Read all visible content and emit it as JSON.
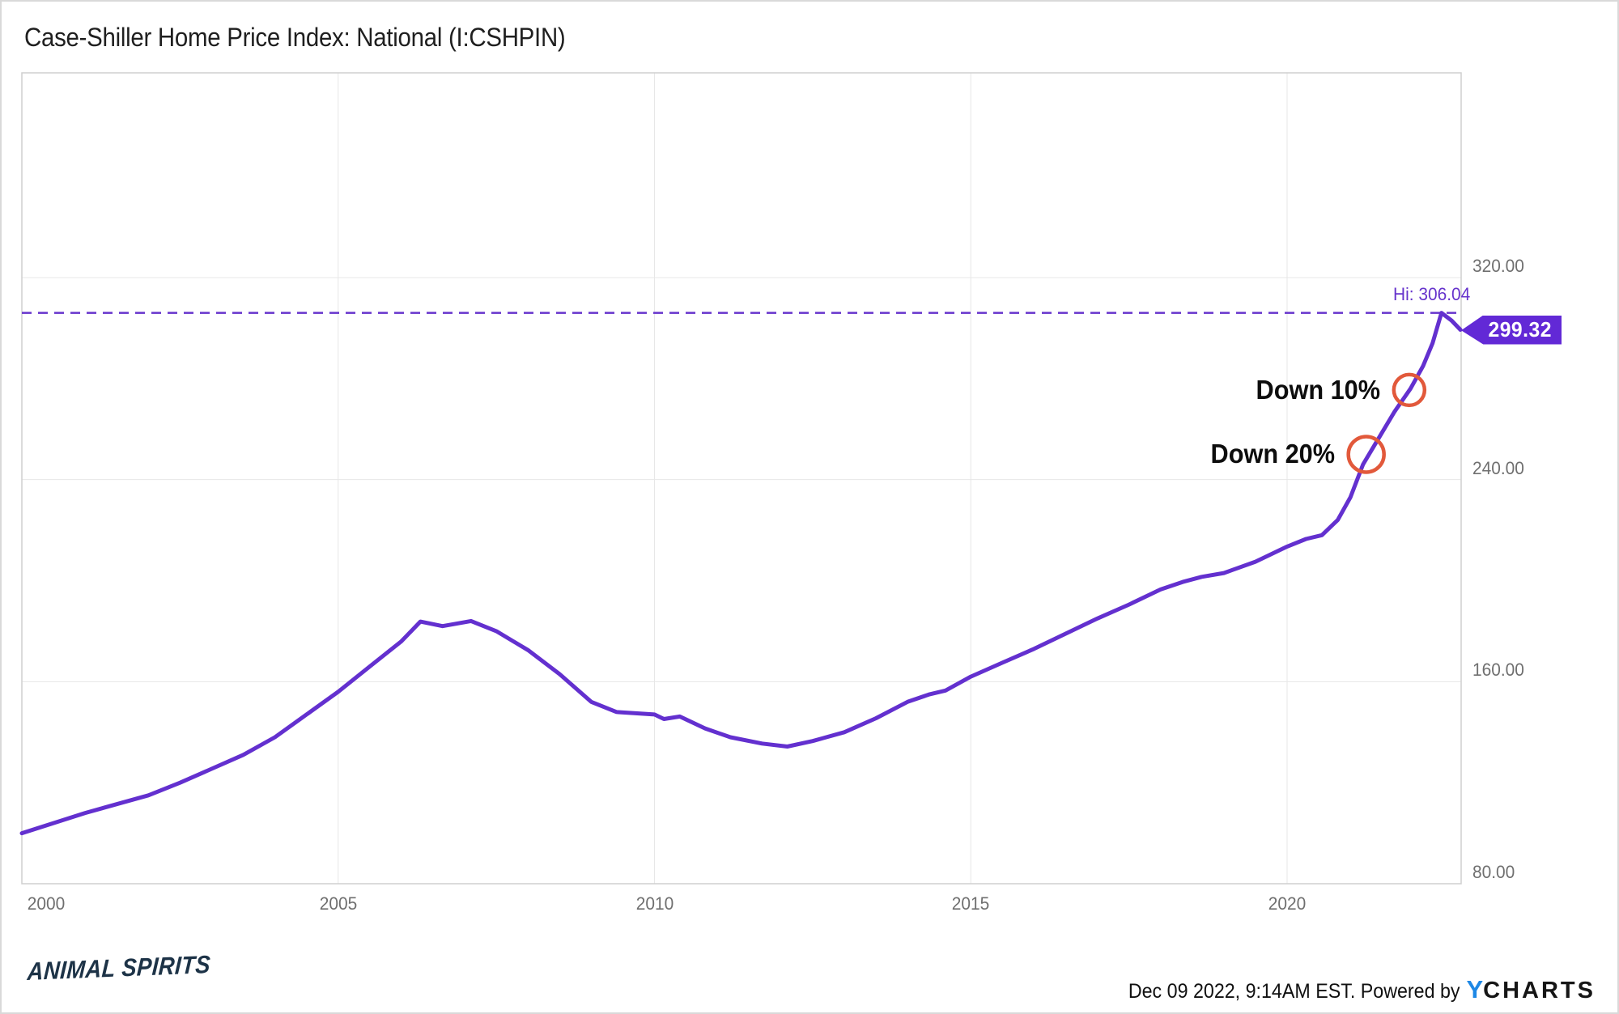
{
  "title": "Case-Shiller Home Price Index: National (I:CSHPIN)",
  "branding": {
    "watermark": "ANIMAL SPIRITS",
    "footer_timestamp": "Dec 09 2022, 9:14AM EST. Powered by",
    "ycharts_y": "Y",
    "ycharts_rest": "CHARTS"
  },
  "colors": {
    "line": "#6330cf",
    "dashed_line": "#6633cc",
    "badge_bg": "#6229d6",
    "annotation_circle": "#e2593b",
    "grid": "#e7e7e7",
    "plot_border": "#cfcfcf",
    "tick_text": "#6f6f6f",
    "title_text": "#1f1f1f",
    "watermark_text": "#1d3347",
    "ycharts_blue": "#1e88e5"
  },
  "chart_data": {
    "type": "line",
    "title": "Case-Shiller Home Price Index: National (I:CSHPIN)",
    "series_name": "I:CSHPIN",
    "xlabel": "",
    "ylabel": "",
    "x_range": [
      2000,
      2022.74
    ],
    "ylim": [
      80,
      401
    ],
    "grid": true,
    "x_ticks": [
      {
        "value": 2000,
        "label": "2000"
      },
      {
        "value": 2005,
        "label": "2005"
      },
      {
        "value": 2010,
        "label": "2010"
      },
      {
        "value": 2015,
        "label": "2015"
      },
      {
        "value": 2020,
        "label": "2020"
      }
    ],
    "y_ticks": [
      {
        "value": 320,
        "label": "320.00"
      },
      {
        "value": 240,
        "label": "240.00"
      },
      {
        "value": 160,
        "label": "160.00"
      },
      {
        "value": 80,
        "label": "80.00"
      }
    ],
    "hi": {
      "label": "Hi: 306.04",
      "value": 306.04
    },
    "last": {
      "label": "299.32",
      "value": 299.32,
      "x": 2022.74
    },
    "annotations": [
      {
        "label": "Down 10%",
        "x": 2021.93,
        "y": 275.5,
        "radius": 19
      },
      {
        "label": "Down 20%",
        "x": 2021.25,
        "y": 250.0,
        "radius": 22
      }
    ],
    "points": [
      [
        2000.0,
        100
      ],
      [
        2000.5,
        104
      ],
      [
        2001.0,
        108
      ],
      [
        2001.5,
        111.5
      ],
      [
        2002.0,
        115
      ],
      [
        2002.5,
        120
      ],
      [
        2003.0,
        125.5
      ],
      [
        2003.5,
        131
      ],
      [
        2004.0,
        138
      ],
      [
        2004.5,
        147
      ],
      [
        2005.0,
        156
      ],
      [
        2005.5,
        166
      ],
      [
        2006.0,
        176
      ],
      [
        2006.3,
        183.8
      ],
      [
        2006.65,
        182
      ],
      [
        2007.1,
        184
      ],
      [
        2007.5,
        180
      ],
      [
        2008.0,
        172.5
      ],
      [
        2008.5,
        163
      ],
      [
        2009.0,
        152
      ],
      [
        2009.4,
        148
      ],
      [
        2010.0,
        147
      ],
      [
        2010.15,
        145.2
      ],
      [
        2010.4,
        146.2
      ],
      [
        2010.8,
        141.5
      ],
      [
        2011.2,
        138
      ],
      [
        2011.7,
        135.5
      ],
      [
        2012.1,
        134.3
      ],
      [
        2012.5,
        136.5
      ],
      [
        2013.0,
        140
      ],
      [
        2013.5,
        145.5
      ],
      [
        2014.0,
        152
      ],
      [
        2014.35,
        155
      ],
      [
        2014.6,
        156.5
      ],
      [
        2015.0,
        162
      ],
      [
        2015.5,
        167.5
      ],
      [
        2016.0,
        173
      ],
      [
        2016.5,
        179
      ],
      [
        2017.0,
        185
      ],
      [
        2017.5,
        190.5
      ],
      [
        2018.0,
        196.5
      ],
      [
        2018.35,
        199.5
      ],
      [
        2018.65,
        201.5
      ],
      [
        2019.0,
        203
      ],
      [
        2019.5,
        207.5
      ],
      [
        2020.0,
        213.5
      ],
      [
        2020.3,
        216.5
      ],
      [
        2020.55,
        218
      ],
      [
        2020.8,
        224
      ],
      [
        2021.0,
        233
      ],
      [
        2021.2,
        246
      ],
      [
        2021.45,
        256.5
      ],
      [
        2021.7,
        267
      ],
      [
        2021.95,
        276
      ],
      [
        2022.15,
        285
      ],
      [
        2022.3,
        294
      ],
      [
        2022.44,
        306.04
      ],
      [
        2022.6,
        303
      ],
      [
        2022.74,
        299.32
      ]
    ]
  }
}
